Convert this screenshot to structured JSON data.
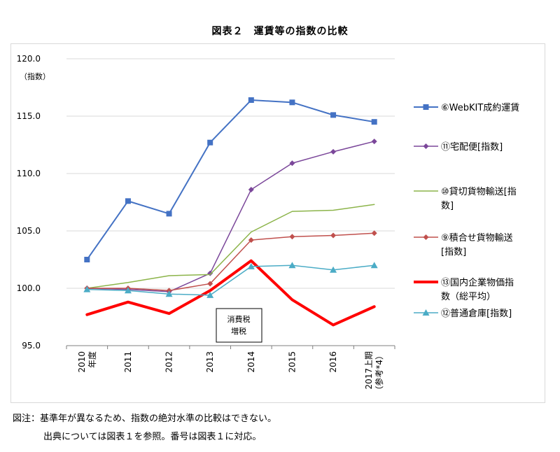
{
  "chart_data": {
    "type": "line",
    "title": "図表２　運賃等の指数の比較",
    "ylabel": "（指数）",
    "ylim": [
      95.0,
      120.0
    ],
    "yticks": [
      "120.0",
      "115.0",
      "110.0",
      "105.0",
      "100.0",
      "95.0"
    ],
    "categories": [
      "2010\n年度",
      "2011",
      "2012",
      "2013",
      "2014",
      "2015",
      "2016",
      "2017上期\n（参考*4）"
    ],
    "grid": true,
    "legend_position": "right",
    "annotation": "消費税\n増税",
    "series": [
      {
        "name": "⑥WebKIT成約運賃",
        "color": "#4472c4",
        "marker": "square",
        "width": 2,
        "values": [
          102.5,
          107.6,
          106.5,
          112.7,
          116.4,
          116.2,
          115.1,
          114.5
        ]
      },
      {
        "name": "⑪宅配便[指数]",
        "color": "#7b479a",
        "marker": "diamond",
        "width": 1.5,
        "values": [
          100.0,
          99.9,
          99.7,
          101.3,
          108.6,
          110.9,
          111.9,
          112.8
        ]
      },
      {
        "name": "⑩貸切貨物輸送[指\n数]",
        "color": "#8cb44a",
        "marker": "none",
        "width": 1.5,
        "values": [
          100.0,
          100.5,
          101.1,
          101.2,
          104.9,
          106.7,
          106.8,
          107.3
        ]
      },
      {
        "name": "⑨積合せ貨物輸送\n[指数]",
        "color": "#c0504d",
        "marker": "diamond",
        "width": 1.5,
        "values": [
          100.0,
          100.0,
          99.8,
          100.4,
          104.2,
          104.5,
          104.6,
          104.8
        ]
      },
      {
        "name": "⑬国内企業物価指\n数（総平均）",
        "color": "#ff0000",
        "marker": "none",
        "width": 4,
        "values": [
          97.7,
          98.8,
          97.8,
          99.8,
          102.4,
          99.0,
          96.8,
          98.4
        ]
      },
      {
        "name": "⑫普通倉庫[指数]",
        "color": "#4bacc6",
        "marker": "triangle",
        "width": 1.5,
        "values": [
          99.9,
          99.8,
          99.5,
          99.4,
          101.9,
          102.0,
          101.6,
          102.0
        ]
      }
    ]
  },
  "notes": {
    "line1": "図注：基準年が異なるため、指数の絶対水準の比較はできない。",
    "line2": "出典については図表１を参照。番号は図表１に対応。"
  }
}
